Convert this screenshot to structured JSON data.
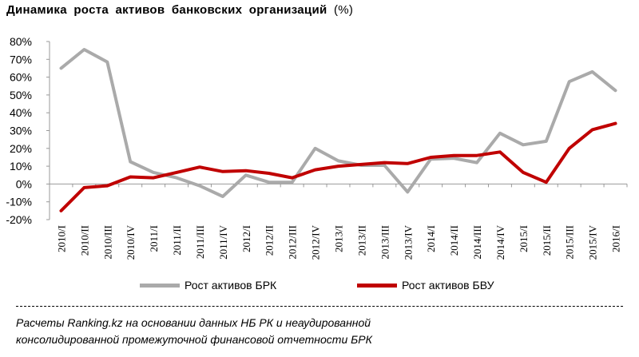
{
  "header": {
    "title": "Динамика роста активов банковских организаций",
    "unit": "(%)"
  },
  "legend": [
    {
      "name": "Рост активов БРК",
      "color": "#aaaaaa"
    },
    {
      "name": "Рост активов БВУ",
      "color": "#c00000"
    }
  ],
  "source": {
    "line1": "Расчеты Ranking.kz на основании данных НБ РК и неаудированной",
    "line2": "консолидированной промежуточной финансовой отчетности БРК"
  },
  "chart_data": {
    "type": "line",
    "title": "Динамика роста активов банковских организаций (%)",
    "xlabel": "",
    "ylabel": "",
    "ylim": [
      -20,
      80
    ],
    "yticks": [
      -20,
      -10,
      0,
      10,
      20,
      30,
      40,
      50,
      60,
      70,
      80
    ],
    "ytick_labels": [
      "-20%",
      "-10%",
      "0%",
      "10%",
      "20%",
      "30%",
      "40%",
      "50%",
      "60%",
      "70%",
      "80%"
    ],
    "grid": false,
    "legend_position": "bottom",
    "categories": [
      "2010/I",
      "2010/II",
      "2010/III",
      "2010/IV",
      "2011/I",
      "2011/II",
      "2011/III",
      "2011/IV",
      "2012/I",
      "2012/II",
      "2012/III",
      "2012/IV",
      "2013/I",
      "2013/II",
      "2013/III",
      "2013/IV",
      "2014/I",
      "2014/II",
      "2014/III",
      "2014/IV",
      "2015/I",
      "2015/II",
      "2015/III",
      "2015/IV",
      "2016/I"
    ],
    "series": [
      {
        "name": "Рост активов БРК",
        "color": "#aaaaaa",
        "values": [
          65,
          75.5,
          68.5,
          12.5,
          6.5,
          3.5,
          -1,
          -7,
          5,
          1,
          1,
          20,
          13,
          10.5,
          10.5,
          -4.5,
          14,
          14.5,
          12,
          28.5,
          22,
          24,
          57.5,
          63,
          52.5
        ]
      },
      {
        "name": "Рост активов БВУ",
        "color": "#c00000",
        "values": [
          -15,
          -2,
          -1,
          4,
          3.5,
          6.5,
          9.5,
          7,
          7.5,
          6,
          3.5,
          8,
          10,
          11,
          12,
          11.5,
          15,
          16,
          16,
          18,
          6.5,
          1,
          20,
          30.5,
          34
        ]
      }
    ]
  }
}
